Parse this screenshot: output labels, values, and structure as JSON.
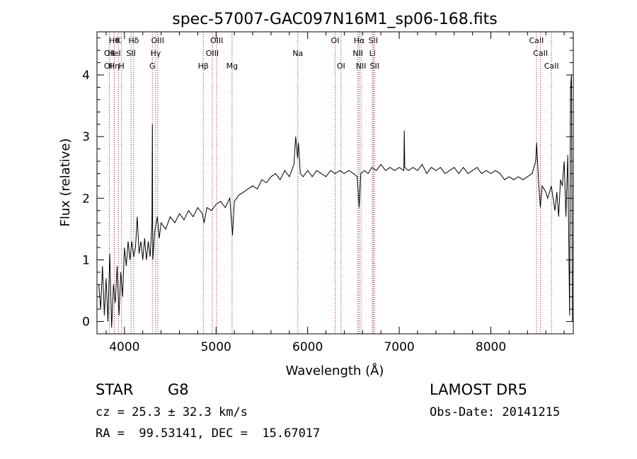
{
  "footer": {
    "object_class": "STAR",
    "subclass": "G8",
    "survey": "LAMOST DR5",
    "redshift_text": "cz = 25.3 ± 32.3 km/s",
    "obs_date_text": "Obs-Date: 20141215",
    "coords_text": "RA =  99.53141, DEC =  15.67017"
  },
  "chart_data": {
    "type": "line",
    "title": "spec-57007-GAC097N16M1_sp06-168.fits",
    "xlabel": "Wavelength (Å)",
    "ylabel": "Flux (relative)",
    "xlim": [
      3700,
      8900
    ],
    "ylim": [
      -0.2,
      4.7
    ],
    "xticks": [
      4000,
      5000,
      6000,
      7000,
      8000
    ],
    "yticks": [
      0,
      1,
      2,
      3,
      4
    ],
    "grid": false,
    "line_color": "#000000",
    "marker_color": "#8b1a1a",
    "series": [
      {
        "points": [
          [
            3720,
            0.6
          ],
          [
            3740,
            0.2
          ],
          [
            3760,
            0.9
          ],
          [
            3780,
            0.1
          ],
          [
            3800,
            0.7
          ],
          [
            3820,
            0.0
          ],
          [
            3840,
            1.1
          ],
          [
            3860,
            -0.1
          ],
          [
            3880,
            0.6
          ],
          [
            3900,
            0.3
          ],
          [
            3920,
            0.9
          ],
          [
            3940,
            0.1
          ],
          [
            3960,
            0.8
          ],
          [
            3980,
            0.4
          ],
          [
            4000,
            1.2
          ],
          [
            4020,
            0.9
          ],
          [
            4040,
            1.3
          ],
          [
            4060,
            1.0
          ],
          [
            4080,
            1.3
          ],
          [
            4100,
            1.05
          ],
          [
            4120,
            1.2
          ],
          [
            4140,
            1.7
          ],
          [
            4160,
            1.1
          ],
          [
            4180,
            1.3
          ],
          [
            4200,
            1.0
          ],
          [
            4220,
            1.35
          ],
          [
            4240,
            1.0
          ],
          [
            4260,
            1.3
          ],
          [
            4280,
            1.05
          ],
          [
            4300,
            1.6
          ],
          [
            4305,
            3.2
          ],
          [
            4310,
            1.0
          ],
          [
            4330,
            1.45
          ],
          [
            4360,
            1.7
          ],
          [
            4380,
            1.35
          ],
          [
            4400,
            1.6
          ],
          [
            4450,
            1.5
          ],
          [
            4500,
            1.7
          ],
          [
            4550,
            1.6
          ],
          [
            4600,
            1.75
          ],
          [
            4650,
            1.65
          ],
          [
            4700,
            1.8
          ],
          [
            4750,
            1.7
          ],
          [
            4800,
            1.85
          ],
          [
            4850,
            1.75
          ],
          [
            4870,
            1.6
          ],
          [
            4900,
            1.85
          ],
          [
            4950,
            1.8
          ],
          [
            5000,
            1.9
          ],
          [
            5050,
            1.95
          ],
          [
            5100,
            1.85
          ],
          [
            5150,
            2.0
          ],
          [
            5180,
            1.4
          ],
          [
            5200,
            1.95
          ],
          [
            5250,
            2.05
          ],
          [
            5300,
            2.1
          ],
          [
            5350,
            2.15
          ],
          [
            5400,
            2.2
          ],
          [
            5450,
            2.15
          ],
          [
            5500,
            2.3
          ],
          [
            5550,
            2.25
          ],
          [
            5600,
            2.35
          ],
          [
            5650,
            2.4
          ],
          [
            5700,
            2.3
          ],
          [
            5750,
            2.45
          ],
          [
            5800,
            2.35
          ],
          [
            5850,
            2.55
          ],
          [
            5870,
            3.0
          ],
          [
            5890,
            2.65
          ],
          [
            5900,
            2.9
          ],
          [
            5920,
            2.4
          ],
          [
            5950,
            2.35
          ],
          [
            6000,
            2.45
          ],
          [
            6050,
            2.35
          ],
          [
            6100,
            2.45
          ],
          [
            6150,
            2.4
          ],
          [
            6200,
            2.35
          ],
          [
            6250,
            2.45
          ],
          [
            6300,
            2.4
          ],
          [
            6350,
            2.45
          ],
          [
            6400,
            2.4
          ],
          [
            6450,
            2.45
          ],
          [
            6500,
            2.4
          ],
          [
            6540,
            2.35
          ],
          [
            6563,
            1.85
          ],
          [
            6580,
            2.4
          ],
          [
            6620,
            2.45
          ],
          [
            6660,
            2.4
          ],
          [
            6700,
            2.5
          ],
          [
            6750,
            2.45
          ],
          [
            6800,
            2.55
          ],
          [
            6850,
            2.45
          ],
          [
            6900,
            2.5
          ],
          [
            6950,
            2.45
          ],
          [
            7000,
            2.5
          ],
          [
            7050,
            2.45
          ],
          [
            7055,
            3.1
          ],
          [
            7060,
            2.5
          ],
          [
            7100,
            2.45
          ],
          [
            7150,
            2.5
          ],
          [
            7200,
            2.45
          ],
          [
            7250,
            2.55
          ],
          [
            7300,
            2.4
          ],
          [
            7350,
            2.5
          ],
          [
            7400,
            2.45
          ],
          [
            7450,
            2.5
          ],
          [
            7500,
            2.4
          ],
          [
            7550,
            2.45
          ],
          [
            7600,
            2.5
          ],
          [
            7650,
            2.4
          ],
          [
            7700,
            2.5
          ],
          [
            7750,
            2.4
          ],
          [
            7800,
            2.45
          ],
          [
            7850,
            2.5
          ],
          [
            7900,
            2.4
          ],
          [
            7950,
            2.45
          ],
          [
            8000,
            2.4
          ],
          [
            8050,
            2.45
          ],
          [
            8100,
            2.4
          ],
          [
            8150,
            2.3
          ],
          [
            8200,
            2.35
          ],
          [
            8250,
            2.3
          ],
          [
            8300,
            2.35
          ],
          [
            8350,
            2.3
          ],
          [
            8400,
            2.35
          ],
          [
            8450,
            2.4
          ],
          [
            8490,
            2.6
          ],
          [
            8500,
            2.9
          ],
          [
            8520,
            2.3
          ],
          [
            8540,
            1.85
          ],
          [
            8560,
            2.2
          ],
          [
            8600,
            2.1
          ],
          [
            8620,
            2.0
          ],
          [
            8640,
            2.1
          ],
          [
            8660,
            2.2
          ],
          [
            8680,
            2.0
          ],
          [
            8700,
            1.8
          ],
          [
            8720,
            2.1
          ],
          [
            8740,
            1.7
          ],
          [
            8760,
            2.3
          ],
          [
            8780,
            2.2
          ],
          [
            8800,
            2.6
          ],
          [
            8820,
            1.7
          ],
          [
            8840,
            2.7
          ],
          [
            8860,
            0.1
          ],
          [
            8870,
            3.8
          ],
          [
            8880,
            4.0
          ],
          [
            8890,
            0.0
          ]
        ]
      }
    ],
    "line_markers": [
      {
        "x": 3835,
        "label": "OII",
        "row": 1
      },
      {
        "x": 3835,
        "label": "OII",
        "row": 2
      },
      {
        "x": 3889,
        "label": "Hθ",
        "row": 0
      },
      {
        "x": 3889,
        "label": "HeI",
        "row": 1
      },
      {
        "x": 3889,
        "label": "Hη",
        "row": 2
      },
      {
        "x": 3934,
        "label": "K",
        "row": 0
      },
      {
        "x": 3968,
        "label": "H",
        "row": 2
      },
      {
        "x": 4101,
        "label": "Hδ",
        "row": 0
      },
      {
        "x": 4072,
        "label": "SII",
        "row": 1
      },
      {
        "x": 4363,
        "label": "OIII",
        "row": 0
      },
      {
        "x": 4340,
        "label": "Hγ",
        "row": 1
      },
      {
        "x": 4305,
        "label": "G",
        "row": 2
      },
      {
        "x": 4861,
        "label": "Hβ",
        "row": 2
      },
      {
        "x": 5007,
        "label": "OIII",
        "row": 0
      },
      {
        "x": 4959,
        "label": "OIII",
        "row": 1
      },
      {
        "x": 5175,
        "label": "Mg",
        "row": 2
      },
      {
        "x": 5893,
        "label": "Na",
        "row": 1
      },
      {
        "x": 6300,
        "label": "OI",
        "row": 0
      },
      {
        "x": 6364,
        "label": "OI",
        "row": 2
      },
      {
        "x": 6563,
        "label": "Hα",
        "row": 0
      },
      {
        "x": 6548,
        "label": "NII",
        "row": 1
      },
      {
        "x": 6583,
        "label": "NII",
        "row": 2
      },
      {
        "x": 6716,
        "label": "SII",
        "row": 0
      },
      {
        "x": 6707,
        "label": "Li",
        "row": 1
      },
      {
        "x": 6731,
        "label": "SII",
        "row": 2
      },
      {
        "x": 8498,
        "label": "CaII",
        "row": 0
      },
      {
        "x": 8542,
        "label": "CaII",
        "row": 1
      },
      {
        "x": 8662,
        "label": "CaII",
        "row": 2
      }
    ]
  }
}
